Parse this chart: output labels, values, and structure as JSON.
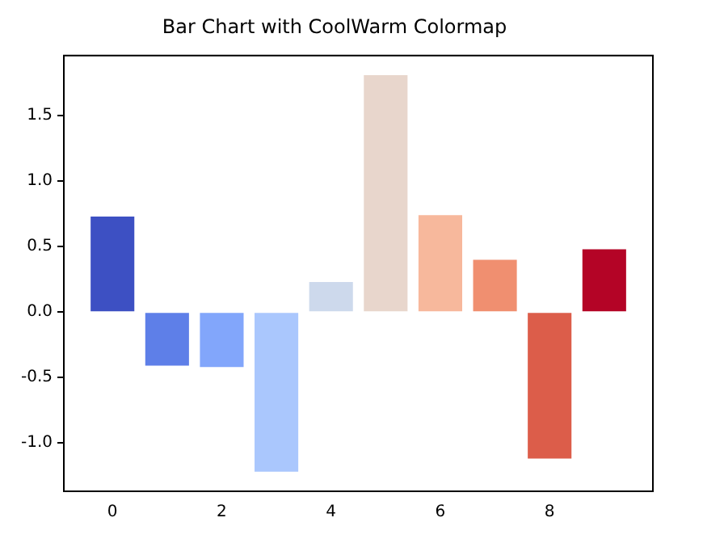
{
  "chart_data": {
    "type": "bar",
    "title": "Bar Chart with CoolWarm Colormap",
    "x": [
      0,
      1,
      2,
      3,
      4,
      5,
      6,
      7,
      8,
      9
    ],
    "values": [
      0.73,
      -0.41,
      -0.42,
      -1.22,
      0.23,
      1.81,
      0.74,
      0.4,
      -1.12,
      0.48
    ],
    "colors": [
      "#3d50c3",
      "#5e7fe8",
      "#82a6fb",
      "#aac7fd",
      "#cdd9ec",
      "#e8d6cc",
      "#f7b89c",
      "#f08f70",
      "#dc5d4a",
      "#b40426"
    ],
    "xlim": [
      -0.89,
      9.89
    ],
    "xticks": [
      0,
      2,
      4,
      6,
      8
    ],
    "ylim": [
      -1.37,
      1.96
    ],
    "yticks": [
      {
        "value": -1,
        "label": "-1.0"
      },
      -0.5,
      {
        "value": 0,
        "label": "0.0"
      },
      0.5,
      {
        "value": 1,
        "label": "1.0"
      },
      1.5
    ],
    "grid": false,
    "legend": false
  }
}
